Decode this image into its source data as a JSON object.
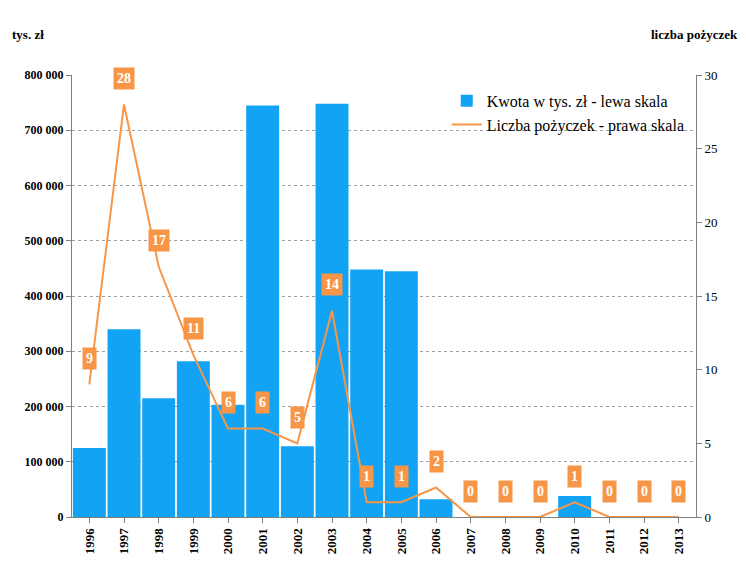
{
  "chart_data": {
    "type": "bar",
    "ylabel": "tys. zł",
    "y2label": "liczba pożyczek",
    "categories": [
      "1996",
      "1997",
      "1998",
      "1999",
      "2000",
      "2001",
      "2002",
      "2003",
      "2004",
      "2005",
      "2006",
      "2007",
      "2008",
      "2009",
      "2010",
      "2011",
      "2012",
      "2013"
    ],
    "series": [
      {
        "name": "Kwota w tys. zł - lewa skala",
        "type": "bar",
        "color": "#12a3f5",
        "values": [
          125000,
          340000,
          215000,
          282000,
          203000,
          745000,
          128000,
          748000,
          448000,
          445000,
          32000,
          0,
          0,
          0,
          38000,
          0,
          0,
          0
        ]
      },
      {
        "name": "Liczba pożyczek - prawa skala",
        "type": "line",
        "axis": "y2",
        "color": "#f79646",
        "data_labels": true,
        "values": [
          9,
          28,
          17,
          11,
          6,
          6,
          5,
          14,
          1,
          1,
          2,
          0,
          0,
          0,
          1,
          0,
          0,
          0
        ]
      }
    ],
    "ylim": [
      0,
      800000
    ],
    "yticks": [
      0,
      {
        "value": 100000,
        "label": "100 000"
      },
      {
        "value": 200000,
        "label": "200 000"
      },
      {
        "value": 300000,
        "label": "300 000"
      },
      {
        "value": 400000,
        "label": "400 000"
      },
      {
        "value": 500000,
        "label": "500 000"
      },
      {
        "value": 600000,
        "label": "600 000"
      },
      {
        "value": 700000,
        "label": "700 000"
      },
      {
        "value": 800000,
        "label": "800 000"
      }
    ],
    "y2lim": [
      0,
      30
    ],
    "y2ticks": [
      0,
      5,
      10,
      15,
      20,
      25,
      30
    ],
    "grid": true,
    "legend": "top right"
  }
}
